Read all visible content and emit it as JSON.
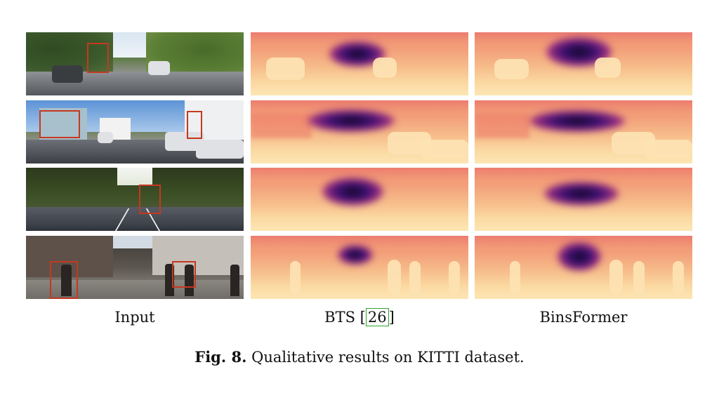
{
  "labels": {
    "input": "Input",
    "bts": "BTS",
    "bts_ref": "26",
    "binsformer": "BinsFormer"
  },
  "caption": {
    "prefix": "Fig. 8.",
    "text": "Qualitative results on KITTI dataset."
  },
  "colors": {
    "highlight_box": "#c6381f",
    "ref_box": "#2aa52a",
    "depth_near": "#fce6b4",
    "depth_far": "#0f0720"
  }
}
